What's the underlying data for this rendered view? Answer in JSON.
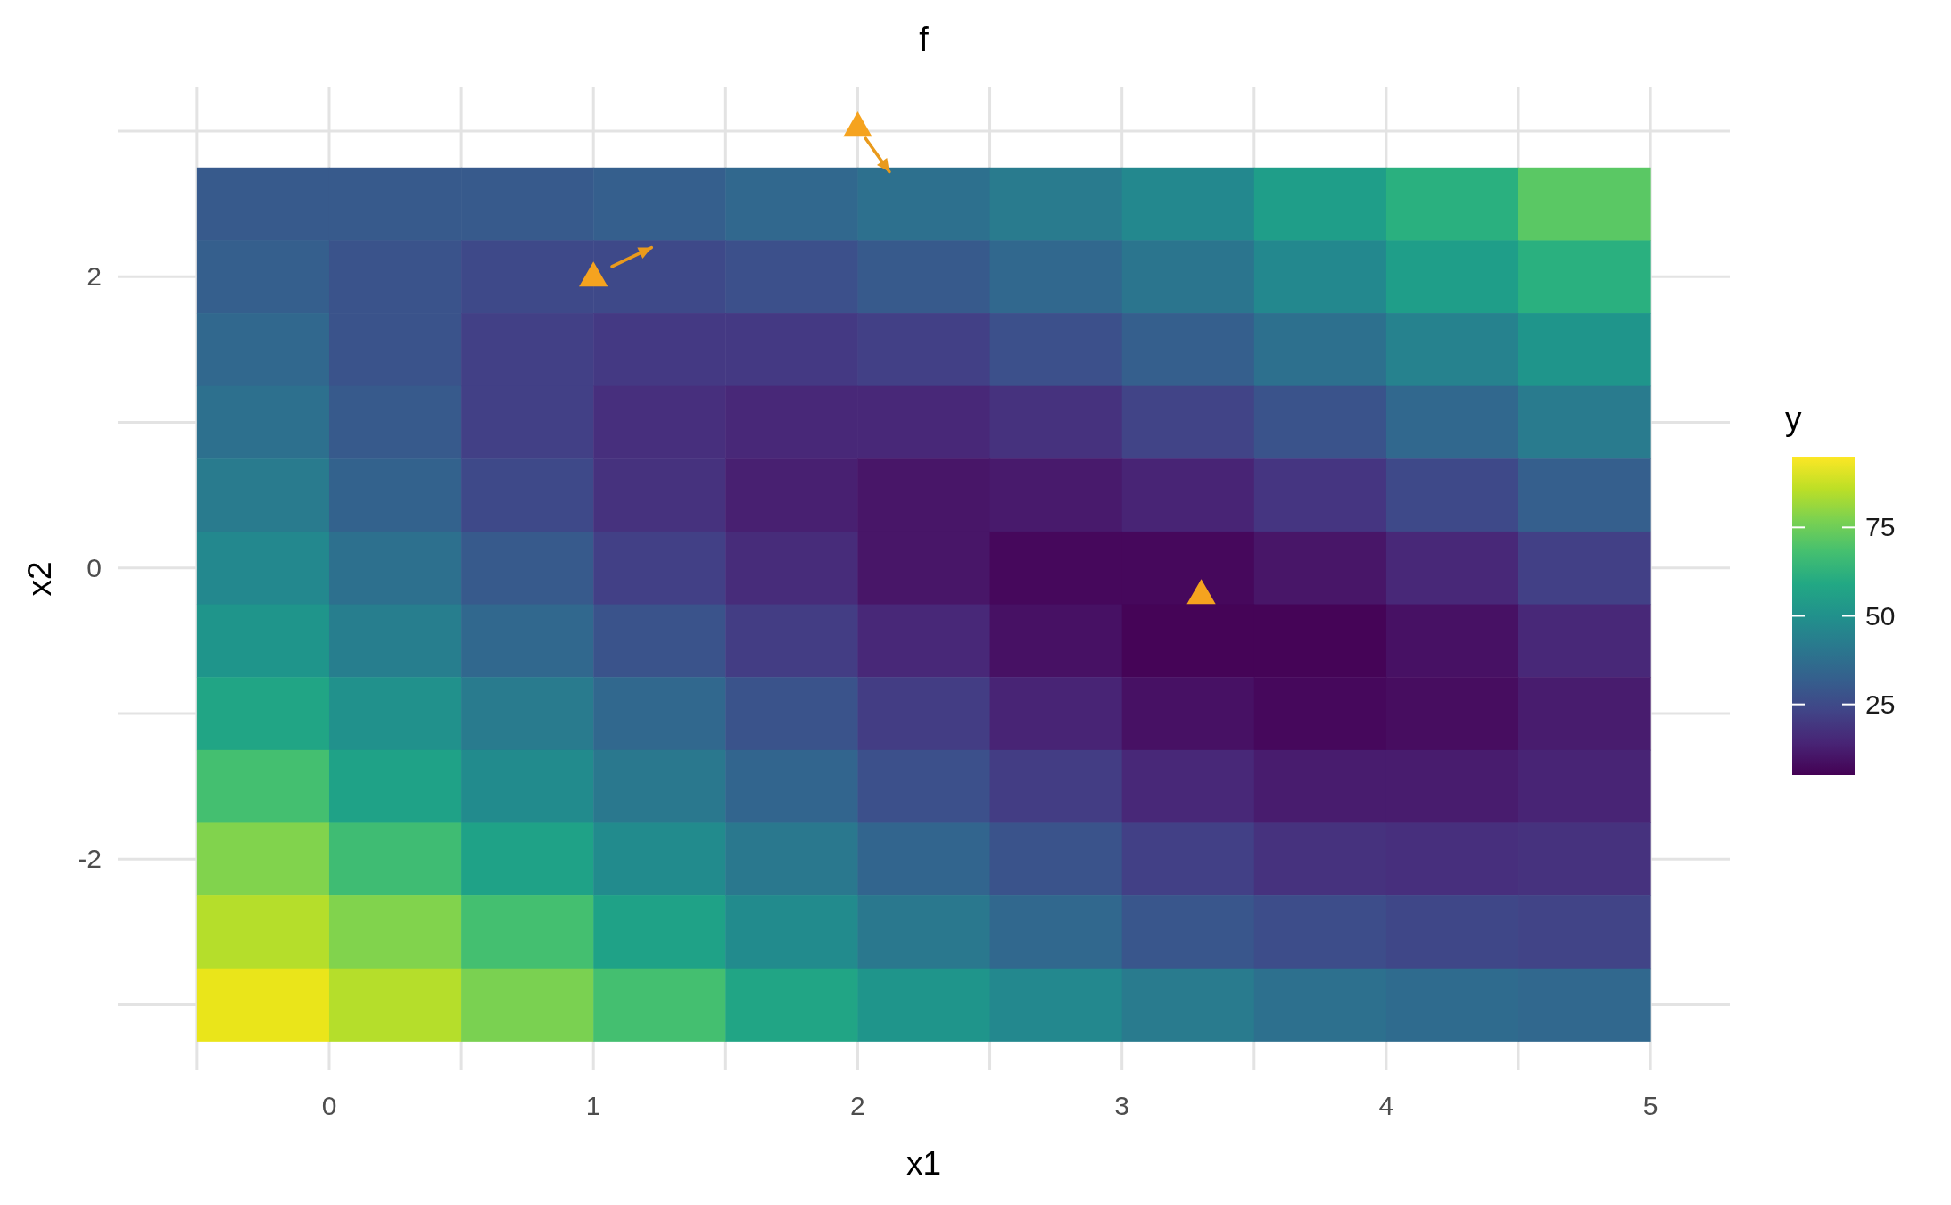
{
  "chart_data": {
    "type": "heatmap",
    "title": "f",
    "xlabel": "x1",
    "ylabel": "x2",
    "legend_title": "y",
    "xlim": [
      -0.8,
      5.3
    ],
    "ylim": [
      -3.45,
      3.3
    ],
    "xticks": [
      {
        "value": -0.5,
        "label": null
      },
      0,
      {
        "value": 0.5,
        "label": null
      },
      1,
      {
        "value": 1.5,
        "label": null
      },
      2,
      {
        "value": 2.5,
        "label": null
      },
      3,
      {
        "value": 3.5,
        "label": null
      },
      4,
      {
        "value": 4.5,
        "label": null
      },
      5
    ],
    "yticks": [
      {
        "value": -3,
        "label": null
      },
      -2,
      {
        "value": -1,
        "label": null
      },
      0,
      {
        "value": 1,
        "label": null
      },
      2,
      {
        "value": 3,
        "label": null
      }
    ],
    "grid": true,
    "clim": [
      5,
      95
    ],
    "cticks": [
      25,
      50,
      75
    ],
    "x": [
      -0.25,
      0.25,
      0.75,
      1.25,
      1.75,
      2.25,
      2.75,
      3.25,
      3.75,
      4.25,
      4.75
    ],
    "y": [
      2.5,
      2.0,
      1.5,
      1.0,
      0.5,
      0.0,
      -0.5,
      -1.0,
      -1.5,
      -2.0,
      -2.5,
      -3.0
    ],
    "cells": [
      [
        30,
        30,
        30,
        32,
        35,
        38,
        42,
        47,
        55,
        62,
        72
      ],
      [
        32,
        28,
        25,
        25,
        27,
        30,
        35,
        40,
        47,
        55,
        62
      ],
      [
        35,
        28,
        22,
        20,
        20,
        22,
        27,
        32,
        38,
        45,
        52
      ],
      [
        38,
        30,
        22,
        17,
        15,
        15,
        18,
        23,
        28,
        35,
        42
      ],
      [
        42,
        33,
        25,
        18,
        13,
        10,
        11,
        14,
        19,
        25,
        32
      ],
      [
        47,
        38,
        30,
        22,
        16,
        10,
        7,
        7,
        10,
        15,
        22
      ],
      [
        52,
        43,
        35,
        28,
        21,
        15,
        9,
        6,
        6,
        9,
        15
      ],
      [
        58,
        50,
        42,
        35,
        28,
        21,
        14,
        9,
        7,
        8,
        12
      ],
      [
        68,
        57,
        48,
        41,
        34,
        27,
        21,
        15,
        12,
        12,
        14
      ],
      [
        78,
        67,
        57,
        48,
        41,
        34,
        28,
        22,
        18,
        17,
        18
      ],
      [
        85,
        78,
        68,
        57,
        48,
        41,
        35,
        29,
        26,
        24,
        23
      ],
      [
        92,
        85,
        77,
        68,
        58,
        52,
        47,
        42,
        38,
        36,
        35
      ]
    ],
    "series": [
      {
        "type": "scatter",
        "marker": "triangle",
        "color": "#f5a31f",
        "x": [
          1,
          2,
          3.3
        ],
        "values": [
          2,
          3.03,
          -0.18
        ]
      },
      {
        "type": "line",
        "line_style": "solid",
        "color": "#e99a1c",
        "x": [
          1.07,
          1.22
        ],
        "values": [
          2.07,
          2.2
        ]
      },
      {
        "type": "line",
        "line_style": "solid",
        "color": "#e99a1c",
        "x": [
          2.03,
          2.12
        ],
        "values": [
          2.95,
          2.72
        ]
      }
    ]
  }
}
